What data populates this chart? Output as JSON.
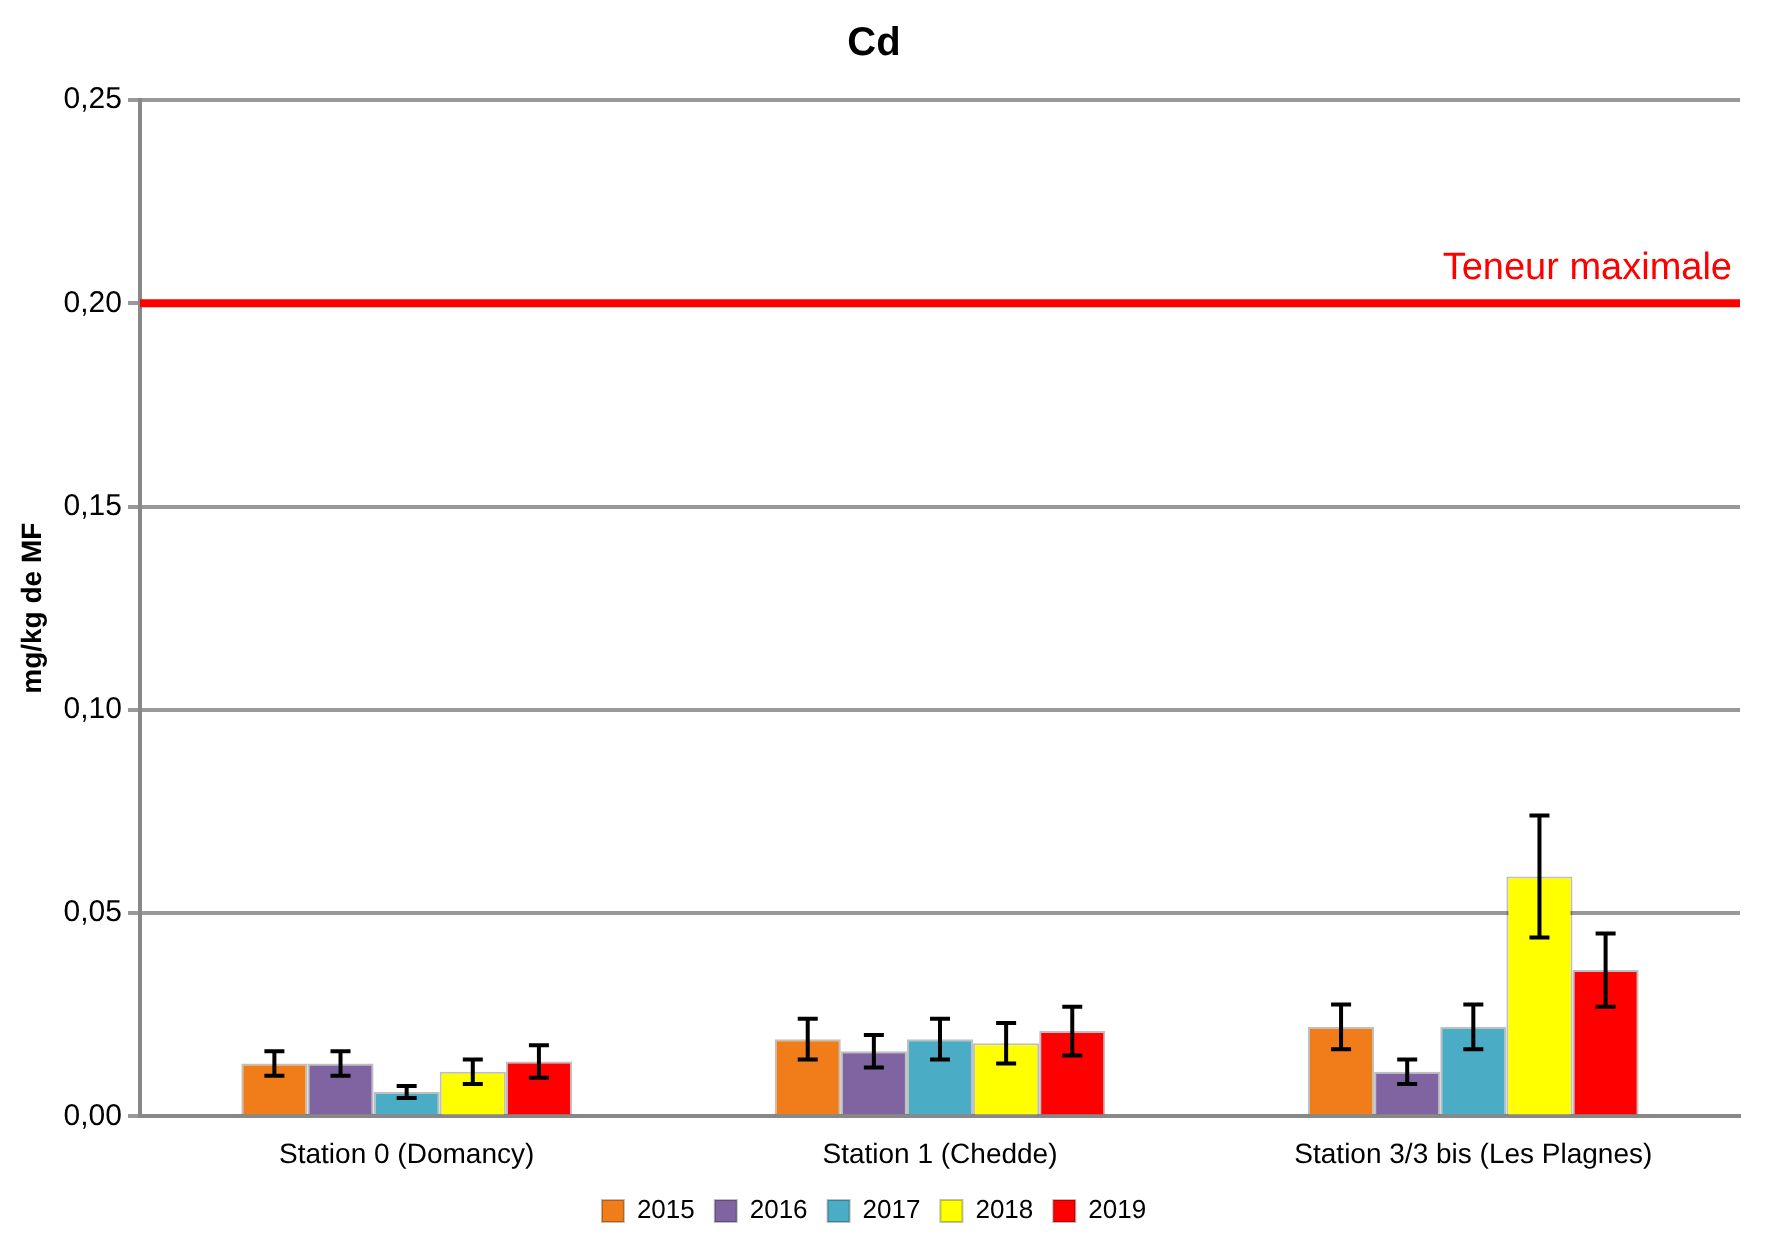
{
  "chart_data": {
    "type": "bar",
    "title": "Cd",
    "ylabel": "mg/kg de MF",
    "categories": [
      "Station 0 (Domancy)",
      "Station 1 (Chedde)",
      "Station 3/3 bis (Les Plagnes)"
    ],
    "series": [
      {
        "name": "2015",
        "color": "#f07d1a",
        "values": [
          0.013,
          0.019,
          0.022
        ],
        "errors": [
          0.003,
          0.005,
          0.0055
        ]
      },
      {
        "name": "2016",
        "color": "#8064a2",
        "values": [
          0.013,
          0.016,
          0.011
        ],
        "errors": [
          0.003,
          0.004,
          0.003
        ]
      },
      {
        "name": "2017",
        "color": "#4bacc6",
        "values": [
          0.006,
          0.019,
          0.022
        ],
        "errors": [
          0.0015,
          0.005,
          0.0055
        ]
      },
      {
        "name": "2018",
        "color": "#ffff00",
        "values": [
          0.011,
          0.018,
          0.059
        ],
        "errors": [
          0.003,
          0.005,
          0.015
        ]
      },
      {
        "name": "2019",
        "color": "#ff0000",
        "values": [
          0.0135,
          0.021,
          0.036
        ],
        "errors": [
          0.004,
          0.006,
          0.009
        ]
      }
    ],
    "ylim": [
      0,
      0.25
    ],
    "yticks": [
      {
        "value": 0,
        "label": "0,00"
      },
      {
        "value": 0.05,
        "label": "0,05"
      },
      {
        "value": 0.1,
        "label": "0,10"
      },
      {
        "value": 0.15,
        "label": "0,15"
      },
      {
        "value": 0.2,
        "label": "0,20"
      },
      {
        "value": 0.25,
        "label": "0,25"
      }
    ],
    "ref_lines": [
      {
        "axis": "y",
        "value": 0.2,
        "label": "Teneur maximale",
        "color": "#ff0000"
      }
    ],
    "grid": "y",
    "legend": "bottom"
  }
}
